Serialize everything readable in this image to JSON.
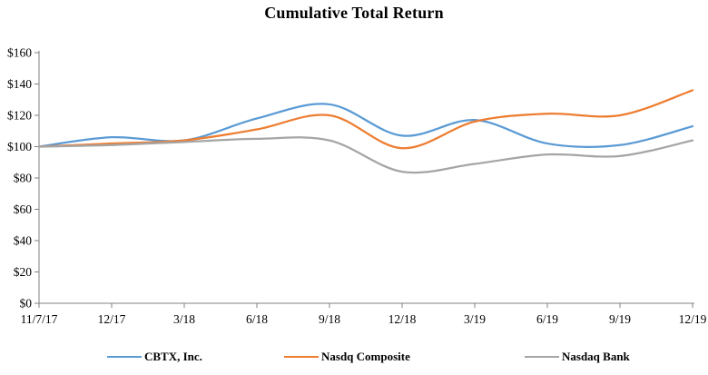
{
  "chart_data": {
    "type": "line",
    "title": "Cumulative Total Return",
    "categories": [
      "11/7/17",
      "12/17",
      "3/18",
      "6/18",
      "9/18",
      "12/18",
      "3/19",
      "6/19",
      "9/19",
      "12/19"
    ],
    "series": [
      {
        "name": "CBTX, Inc.",
        "color": "#5B9BD5",
        "values": [
          100,
          106,
          104,
          118,
          127,
          107,
          117,
          102,
          101,
          113
        ]
      },
      {
        "name": "Nasdq Composite",
        "color": "#ED7D31",
        "values": [
          100,
          102,
          104,
          111,
          120,
          99,
          116,
          121,
          120,
          136
        ]
      },
      {
        "name": "Nasdaq Bank",
        "color": "#A5A5A5",
        "values": [
          100,
          101,
          103,
          105,
          104,
          84,
          89,
          95,
          94,
          104
        ]
      }
    ],
    "ylim": [
      0,
      160
    ],
    "y_tick_step": 20,
    "y_tick_labels": [
      "$0",
      "$20",
      "$40",
      "$60",
      "$80",
      "$100",
      "$120",
      "$140",
      "$160"
    ],
    "grid": false,
    "smooth": true,
    "legend_position": "bottom",
    "axis_color": "#808080",
    "line_width": 2.25
  }
}
